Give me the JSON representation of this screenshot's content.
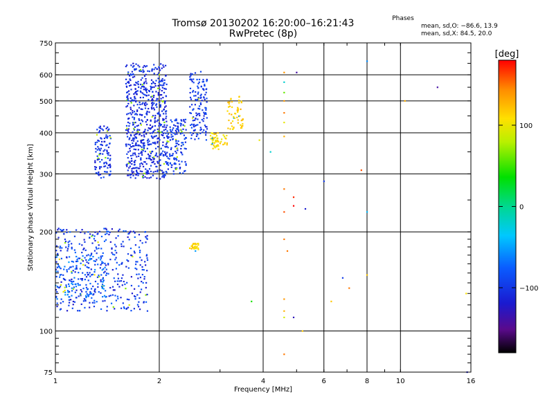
{
  "header": {
    "title_line1": "Tromsø 20130202 16:20:00–16:21:43",
    "title_line2": "RwPretec (8p)",
    "phases_title": "Phases",
    "phases_o": "mean, sd,O: −86.6, 13.9",
    "phases_x": "mean, sd,X:  84.5, 20.0"
  },
  "colorbar": {
    "unit_label": "[deg]",
    "range": [
      -180,
      180
    ],
    "ticks": [
      {
        "value": 100,
        "label": "100"
      },
      {
        "value": 0,
        "label": "0"
      },
      {
        "value": -100,
        "label": "−100"
      }
    ]
  },
  "chart_data": {
    "type": "scatter",
    "title": "Tromsø 20130202 16:20:00–16:21:43",
    "subtitle": "RwPretec (8p)",
    "xlabel": "Frequency [MHz]",
    "ylabel": "Stationary phase Virtual Height [km]",
    "x_scale": "log",
    "y_scale": "log",
    "xlim": [
      1,
      16
    ],
    "ylim": [
      75,
      750
    ],
    "x_ticks": [
      {
        "value": 1,
        "label": "1"
      },
      {
        "value": 2,
        "label": "2"
      },
      {
        "value": 4,
        "label": "4"
      },
      {
        "value": 6,
        "label": "6"
      },
      {
        "value": 8,
        "label": "8"
      },
      {
        "value": 10,
        "label": "10"
      },
      {
        "value": 16,
        "label": "16"
      }
    ],
    "y_ticks": [
      {
        "value": 75,
        "label": "75"
      },
      {
        "value": 100,
        "label": "100"
      },
      {
        "value": 200,
        "label": "200"
      },
      {
        "value": 300,
        "label": "300"
      },
      {
        "value": 400,
        "label": "400"
      },
      {
        "value": 500,
        "label": "500"
      },
      {
        "value": 600,
        "label": "600"
      },
      {
        "value": 750,
        "label": "750"
      }
    ],
    "grid": true,
    "color_encoding": "phase in degrees",
    "clusters": [
      {
        "x_range": [
          1.0,
          1.85
        ],
        "y_range": [
          115,
          205
        ],
        "phase": -100,
        "spread": 25,
        "points": 420
      },
      {
        "x_range": [
          1.0,
          1.4
        ],
        "y_range": [
          125,
          170
        ],
        "phase": -70,
        "spread": 20,
        "points": 100
      },
      {
        "x_range": [
          1.3,
          1.45
        ],
        "y_range": [
          290,
          420
        ],
        "phase": -105,
        "spread": 15,
        "points": 110
      },
      {
        "x_range": [
          1.6,
          2.1
        ],
        "y_range": [
          290,
          650
        ],
        "phase": -108,
        "spread": 15,
        "points": 650
      },
      {
        "x_range": [
          2.1,
          2.4
        ],
        "y_range": [
          300,
          440
        ],
        "phase": -100,
        "spread": 15,
        "points": 150
      },
      {
        "x_range": [
          2.45,
          2.75
        ],
        "y_range": [
          380,
          620
        ],
        "phase": -100,
        "spread": 15,
        "points": 140
      },
      {
        "x_range": [
          2.8,
          3.15
        ],
        "y_range": [
          355,
          400
        ],
        "phase": 110,
        "spread": 15,
        "points": 55
      },
      {
        "x_range": [
          3.15,
          3.5
        ],
        "y_range": [
          410,
          520
        ],
        "phase": 120,
        "spread": 15,
        "points": 55
      },
      {
        "x_range": [
          2.45,
          2.6
        ],
        "y_range": [
          175,
          185
        ],
        "phase": 115,
        "spread": 12,
        "points": 30
      }
    ],
    "points": [
      {
        "x": 4.6,
        "y": 610,
        "phase": 140
      },
      {
        "x": 5.0,
        "y": 610,
        "phase": -140
      },
      {
        "x": 4.6,
        "y": 570,
        "phase": -20
      },
      {
        "x": 4.6,
        "y": 530,
        "phase": 60
      },
      {
        "x": 4.6,
        "y": 500,
        "phase": 140
      },
      {
        "x": 4.6,
        "y": 460,
        "phase": 150
      },
      {
        "x": 4.6,
        "y": 430,
        "phase": 100
      },
      {
        "x": 4.6,
        "y": 390,
        "phase": 130
      },
      {
        "x": 4.2,
        "y": 350,
        "phase": -20
      },
      {
        "x": 4.6,
        "y": 270,
        "phase": 150
      },
      {
        "x": 4.9,
        "y": 255,
        "phase": 170
      },
      {
        "x": 4.9,
        "y": 240,
        "phase": 180
      },
      {
        "x": 4.6,
        "y": 230,
        "phase": 160
      },
      {
        "x": 5.3,
        "y": 235,
        "phase": -120
      },
      {
        "x": 6.0,
        "y": 285,
        "phase": -100
      },
      {
        "x": 7.7,
        "y": 308,
        "phase": 160
      },
      {
        "x": 8.0,
        "y": 660,
        "phase": -60
      },
      {
        "x": 8.0,
        "y": 230,
        "phase": -40
      },
      {
        "x": 4.6,
        "y": 190,
        "phase": 150
      },
      {
        "x": 4.7,
        "y": 175,
        "phase": 150
      },
      {
        "x": 4.6,
        "y": 125,
        "phase": 140
      },
      {
        "x": 4.6,
        "y": 115,
        "phase": 130
      },
      {
        "x": 4.6,
        "y": 110,
        "phase": 90
      },
      {
        "x": 4.9,
        "y": 110,
        "phase": -130
      },
      {
        "x": 5.2,
        "y": 100,
        "phase": 120
      },
      {
        "x": 4.6,
        "y": 85,
        "phase": 150
      },
      {
        "x": 3.7,
        "y": 123,
        "phase": 40
      },
      {
        "x": 6.3,
        "y": 123,
        "phase": 120
      },
      {
        "x": 6.8,
        "y": 145,
        "phase": -100
      },
      {
        "x": 7.1,
        "y": 135,
        "phase": 150
      },
      {
        "x": 8.0,
        "y": 148,
        "phase": 120
      },
      {
        "x": 10.3,
        "y": 500,
        "phase": 130
      },
      {
        "x": 12.8,
        "y": 550,
        "phase": -140
      },
      {
        "x": 15.5,
        "y": 130,
        "phase": 110
      },
      {
        "x": 15.6,
        "y": 75,
        "phase": -120
      },
      {
        "x": 3.9,
        "y": 380,
        "phase": 100
      }
    ]
  }
}
